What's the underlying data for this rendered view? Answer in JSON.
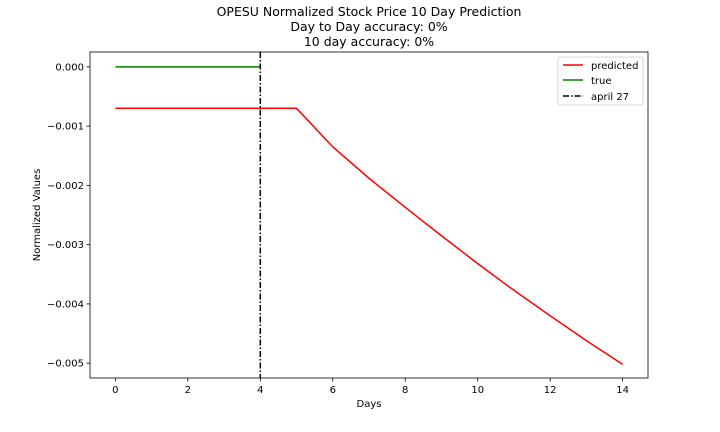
{
  "chart_data": {
    "type": "line",
    "title_lines": [
      "OPESU Normalized Stock Price 10 Day Prediction",
      "Day to Day accuracy: 0%",
      "10 day accuracy: 0%"
    ],
    "xlabel": "Days",
    "ylabel": "Normalized Values",
    "xlim": [
      -0.7,
      14.7
    ],
    "ylim": [
      -0.00525,
      0.00025
    ],
    "xticks": [
      0,
      2,
      4,
      6,
      8,
      10,
      12,
      14
    ],
    "xtick_labels": [
      "0",
      "2",
      "4",
      "6",
      "8",
      "10",
      "12",
      "14"
    ],
    "yticks": [
      0.0,
      -0.001,
      -0.002,
      -0.003,
      -0.004,
      -0.005
    ],
    "ytick_labels": [
      "0.000",
      "−0.001",
      "−0.002",
      "−0.003",
      "−0.004",
      "−0.005"
    ],
    "series": [
      {
        "name": "predicted",
        "color": "#ff0000",
        "x": [
          0,
          1,
          2,
          3,
          4,
          5,
          6,
          7,
          8,
          9,
          10,
          11,
          12,
          13,
          14
        ],
        "y": [
          -0.0007,
          -0.0007,
          -0.0007,
          -0.0007,
          -0.0007,
          -0.0007,
          -0.00135,
          -0.00188,
          -0.00237,
          -0.00285,
          -0.00332,
          -0.00377,
          -0.0042,
          -0.00462,
          -0.00502
        ]
      },
      {
        "name": "true",
        "color": "#008000",
        "x": [
          0,
          1,
          2,
          3,
          4
        ],
        "y": [
          0,
          0,
          0,
          0,
          0
        ]
      }
    ],
    "vlines": [
      {
        "name": "april 27",
        "x": 4,
        "color": "#000000",
        "style": "dashdot"
      }
    ],
    "legend_position": "upper right",
    "grid": false
  }
}
